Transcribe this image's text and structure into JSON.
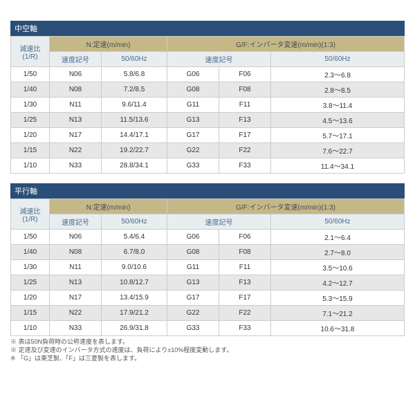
{
  "colors": {
    "section_header_bg": "#2a4e77",
    "section_header_fg": "#ffffff",
    "hdr_blue_bg": "#e8edf0",
    "hdr_blue_fg": "#4a6a8a",
    "hdr_tan_bg": "#c5b888",
    "hdr_tan_fg": "#4a4a4a",
    "row_even_bg": "#ffffff",
    "row_odd_bg": "#e7e7e7",
    "border": "#cccccc"
  },
  "tables": [
    {
      "title": "中空軸",
      "head": {
        "ratio": "減速比\n(1/R)",
        "n_group": "N:定速(m/min)",
        "gf_group": "G/F:インバータ変速(m/min)(1:3)",
        "n_sub1": "速度記号",
        "n_sub2": "50/60Hz",
        "gf_sub1": "速度記号",
        "gf_sub2": "50/60Hz"
      },
      "rows": [
        {
          "r": "1/50",
          "n": "N06",
          "nh": "5.8/6.8",
          "g": "G06",
          "f": "F06",
          "gh": "2.3～6.8"
        },
        {
          "r": "1/40",
          "n": "N08",
          "nh": "7.2/8.5",
          "g": "G08",
          "f": "F08",
          "gh": "2.8～8.5"
        },
        {
          "r": "1/30",
          "n": "N11",
          "nh": "9.6/11.4",
          "g": "G11",
          "f": "F11",
          "gh": "3.8～11.4"
        },
        {
          "r": "1/25",
          "n": "N13",
          "nh": "11.5/13.6",
          "g": "G13",
          "f": "F13",
          "gh": "4.5～13.6"
        },
        {
          "r": "1/20",
          "n": "N17",
          "nh": "14.4/17.1",
          "g": "G17",
          "f": "F17",
          "gh": "5.7～17.1"
        },
        {
          "r": "1/15",
          "n": "N22",
          "nh": "19.2/22.7",
          "g": "G22",
          "f": "F22",
          "gh": "7.6～22.7"
        },
        {
          "r": "1/10",
          "n": "N33",
          "nh": "28.8/34.1",
          "g": "G33",
          "f": "F33",
          "gh": "11.4～34.1"
        }
      ]
    },
    {
      "title": "平行軸",
      "head": {
        "ratio": "減速比\n(1/R)",
        "n_group": "N:定速(m/min)",
        "gf_group": "G/F:インバータ変速(m/min)(1:3)",
        "n_sub1": "速度記号",
        "n_sub2": "50/60Hz",
        "gf_sub1": "速度記号",
        "gf_sub2": "50/60Hz"
      },
      "rows": [
        {
          "r": "1/50",
          "n": "N06",
          "nh": "5.4/6.4",
          "g": "G06",
          "f": "F06",
          "gh": "2.1～6.4"
        },
        {
          "r": "1/40",
          "n": "N08",
          "nh": "6.7/8.0",
          "g": "G08",
          "f": "F08",
          "gh": "2.7～8.0"
        },
        {
          "r": "1/30",
          "n": "N11",
          "nh": "9.0/10.6",
          "g": "G11",
          "f": "F11",
          "gh": "3.5～10.6"
        },
        {
          "r": "1/25",
          "n": "N13",
          "nh": "10.8/12.7",
          "g": "G13",
          "f": "F13",
          "gh": "4.2～12.7"
        },
        {
          "r": "1/20",
          "n": "N17",
          "nh": "13.4/15.9",
          "g": "G17",
          "f": "F17",
          "gh": "5.3～15.9"
        },
        {
          "r": "1/15",
          "n": "N22",
          "nh": "17.9/21.2",
          "g": "G22",
          "f": "F22",
          "gh": "7.1～21.2"
        },
        {
          "r": "1/10",
          "n": "N33",
          "nh": "26.9/31.8",
          "g": "G33",
          "f": "F33",
          "gh": "10.6～31.8"
        }
      ]
    }
  ],
  "notes": [
    "※ 表は50N負荷時の公称速度を表します。",
    "※ 定速及び変速のインバータ方式の速度は、負荷により±10%程度変動します。",
    "※ 「G」は東芝製、「F」は三菱製を表します。"
  ]
}
